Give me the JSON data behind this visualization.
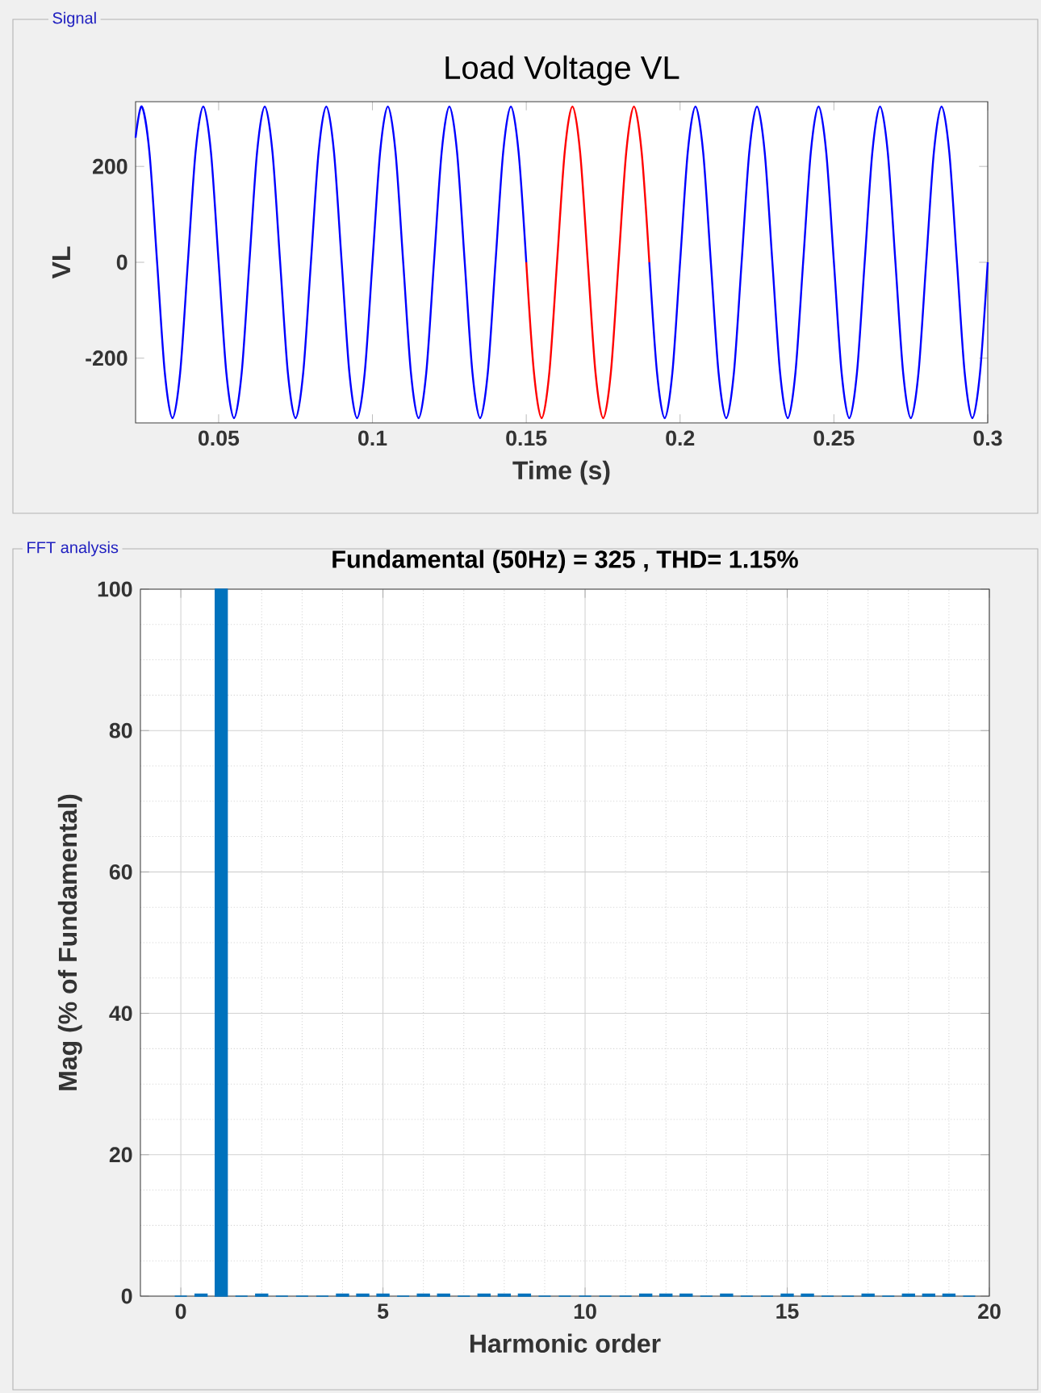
{
  "chart_data": [
    {
      "type": "line",
      "title": "Load Voltage VL",
      "xlabel": "Time (s)",
      "ylabel": "VL",
      "annotations": [
        "Signal"
      ],
      "xlim": [
        0.023,
        0.3
      ],
      "ylim": [
        -335,
        335
      ],
      "xticks": [
        0.05,
        0.1,
        0.15,
        0.2,
        0.25,
        0.3
      ],
      "yticks": [
        -200,
        0,
        200
      ],
      "grid": false,
      "series": [
        {
          "color": "#0000ff",
          "x": [
            0.023,
            0.025,
            0.0275,
            0.03,
            0.0325,
            0.035,
            0.0375,
            0.04,
            0.0425,
            0.045,
            0.0475,
            0.05,
            0.0525,
            0.055,
            0.0575,
            0.06,
            0.0625,
            0.065,
            0.0675,
            0.07,
            0.0725,
            0.075,
            0.0775,
            0.08,
            0.0825,
            0.085,
            0.0875,
            0.09,
            0.0925,
            0.095,
            0.0975,
            0.1,
            0.1025,
            0.105,
            0.1075,
            0.11,
            0.1125,
            0.115,
            0.1175,
            0.12,
            0.1225,
            0.125,
            0.1275,
            0.13,
            0.1325,
            0.135,
            0.1375,
            0.14,
            0.1425,
            0.145,
            0.1475,
            0.15
          ],
          "values": [
            260,
            325,
            230,
            0,
            -230,
            -325,
            -230,
            0,
            230,
            325,
            230,
            0,
            -230,
            -325,
            -230,
            0,
            230,
            325,
            230,
            0,
            -230,
            -325,
            -230,
            0,
            230,
            325,
            230,
            0,
            -230,
            -325,
            -230,
            0,
            230,
            325,
            230,
            0,
            -230,
            -325,
            -230,
            0,
            230,
            325,
            230,
            0,
            -230,
            -325,
            -230,
            0,
            230,
            325,
            230,
            0
          ]
        },
        {
          "color": "#ff0000",
          "x": [
            0.15,
            0.1525,
            0.155,
            0.1575,
            0.16,
            0.1625,
            0.165,
            0.1675,
            0.17,
            0.1725,
            0.175,
            0.1775,
            0.18,
            0.1825,
            0.185,
            0.1875,
            0.19
          ],
          "values": [
            0,
            -230,
            -325,
            -230,
            0,
            230,
            325,
            230,
            0,
            -230,
            -325,
            -230,
            0,
            230,
            325,
            230,
            0
          ]
        },
        {
          "color": "#0000ff",
          "x": [
            0.19,
            0.1925,
            0.195,
            0.1975,
            0.2,
            0.2025,
            0.205,
            0.2075,
            0.21,
            0.2125,
            0.215,
            0.2175,
            0.22,
            0.2225,
            0.225,
            0.2275,
            0.23,
            0.2325,
            0.235,
            0.2375,
            0.24,
            0.2425,
            0.245,
            0.2475,
            0.25,
            0.2525,
            0.255,
            0.2575,
            0.26,
            0.2625,
            0.265,
            0.2675,
            0.27,
            0.2725,
            0.275,
            0.2775,
            0.28,
            0.2825,
            0.285,
            0.2875,
            0.29,
            0.2925,
            0.295,
            0.2975,
            0.3
          ],
          "values": [
            0,
            -230,
            -325,
            -230,
            0,
            230,
            325,
            230,
            0,
            -230,
            -325,
            -230,
            0,
            230,
            325,
            230,
            0,
            -230,
            -325,
            -230,
            0,
            230,
            325,
            230,
            0,
            -230,
            -325,
            -230,
            0,
            230,
            325,
            230,
            0,
            -230,
            -325,
            -230,
            0,
            230,
            325,
            230,
            0,
            -230,
            -325,
            -230,
            0
          ]
        }
      ]
    },
    {
      "type": "bar",
      "title": "Fundamental (50Hz) = 325 , THD= 1.15%",
      "xlabel": "Harmonic order",
      "ylabel": "Mag (% of Fundamental)",
      "annotations": [
        "FFT analysis"
      ],
      "xlim": [
        -1,
        20
      ],
      "ylim": [
        0,
        100
      ],
      "xticks": [
        0,
        5,
        10,
        15,
        20
      ],
      "yticks": [
        0,
        20,
        40,
        60,
        80,
        100
      ],
      "grid": true,
      "color": "#0072bd",
      "x": [
        0,
        0.5,
        1,
        1.5,
        2,
        2.5,
        3,
        3.5,
        4,
        4.5,
        5,
        5.5,
        6,
        6.5,
        7,
        7.5,
        8,
        8.5,
        9,
        9.5,
        10,
        10.5,
        11,
        11.5,
        12,
        12.5,
        13,
        13.5,
        14,
        14.5,
        15,
        15.5,
        16,
        16.5,
        17,
        17.5,
        18,
        18.5,
        19,
        19.5
      ],
      "values": [
        0,
        0.3,
        100,
        0,
        0.3,
        0,
        0,
        0,
        0.3,
        0.3,
        0.3,
        0,
        0.3,
        0.3,
        0,
        0.3,
        0.3,
        0.3,
        0,
        0,
        0,
        0,
        0,
        0.3,
        0.3,
        0.3,
        0,
        0.3,
        0,
        0,
        0.3,
        0.3,
        0,
        0,
        0.3,
        0,
        0.3,
        0.3,
        0.3,
        0
      ]
    }
  ]
}
